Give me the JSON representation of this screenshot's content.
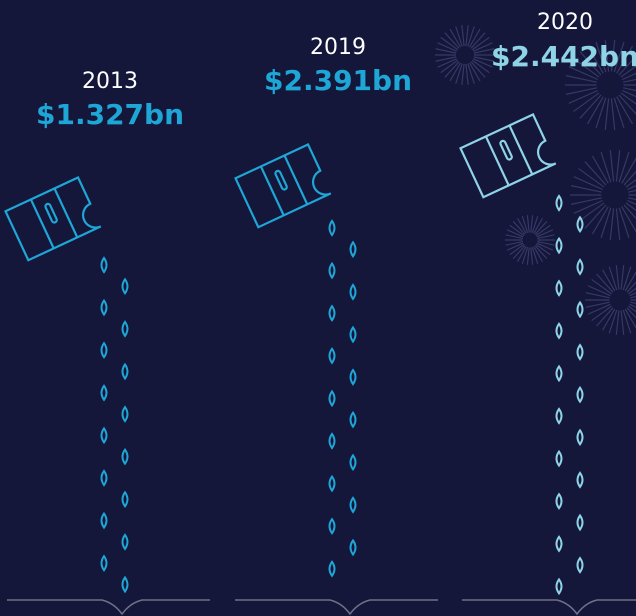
{
  "items": [
    {
      "year": "2013",
      "amount": "$1.327bn"
    },
    {
      "year": "2019",
      "amount": "$2.391bn"
    },
    {
      "year": "2020",
      "amount": "$2.442bn"
    }
  ]
}
